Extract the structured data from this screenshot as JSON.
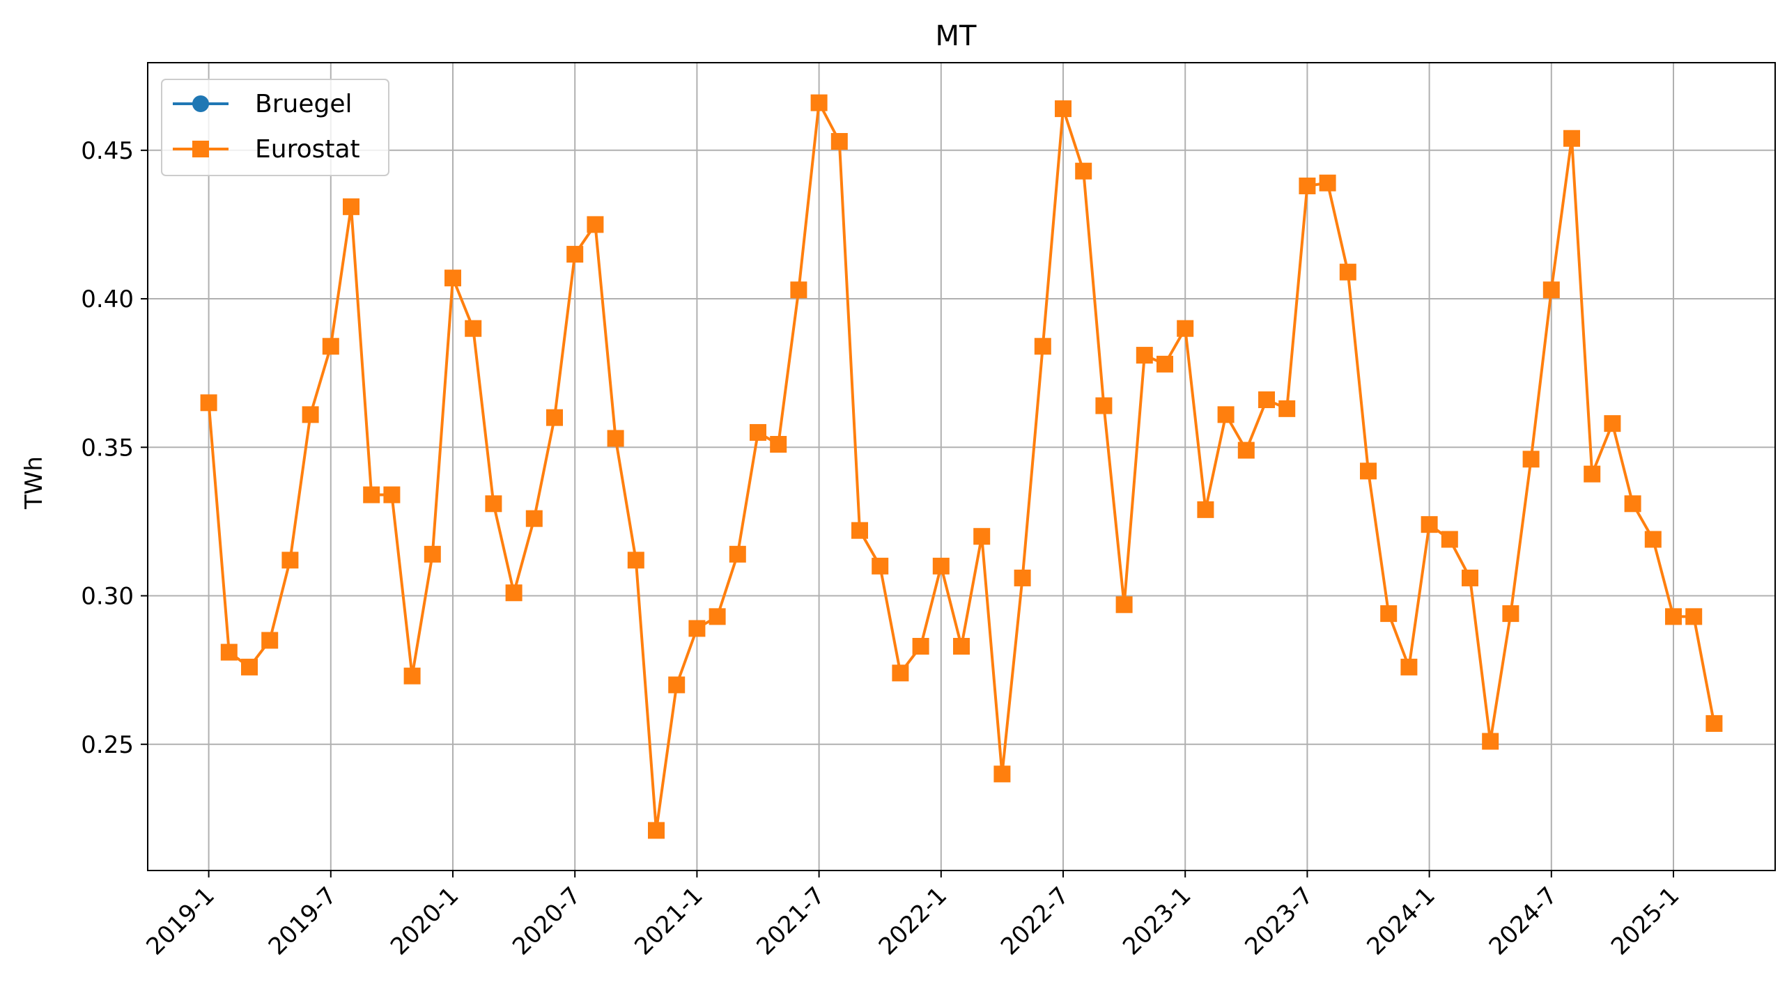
{
  "chart_data": {
    "type": "line",
    "title": "MT",
    "xlabel": "",
    "ylabel": "TWh",
    "x_tick_labels": [
      "2019-1",
      "2019-7",
      "2020-1",
      "2020-7",
      "2021-1",
      "2021-7",
      "2022-1",
      "2022-7",
      "2023-1",
      "2023-7",
      "2024-1",
      "2024-7",
      "2025-1"
    ],
    "y_tick_labels": [
      "0.25",
      "0.30",
      "0.35",
      "0.40",
      "0.45"
    ],
    "y_ticks": [
      0.25,
      0.3,
      0.35,
      0.4,
      0.45
    ],
    "ylim": [
      0.2075,
      0.4795
    ],
    "x_range": [
      "2018-10",
      "2025-6"
    ],
    "grid": true,
    "legend_position": "upper-left",
    "series": [
      {
        "name": "Bruegel",
        "color": "#1f77b4",
        "marker": "circle",
        "values": []
      },
      {
        "name": "Eurostat",
        "color": "#ff7f0e",
        "marker": "square",
        "x": [
          "2019-1",
          "2019-2",
          "2019-3",
          "2019-4",
          "2019-5",
          "2019-6",
          "2019-7",
          "2019-8",
          "2019-9",
          "2019-10",
          "2019-11",
          "2019-12",
          "2020-1",
          "2020-2",
          "2020-3",
          "2020-4",
          "2020-5",
          "2020-6",
          "2020-7",
          "2020-8",
          "2020-9",
          "2020-10",
          "2020-11",
          "2020-12",
          "2021-1",
          "2021-2",
          "2021-3",
          "2021-4",
          "2021-5",
          "2021-6",
          "2021-7",
          "2021-8",
          "2021-9",
          "2021-10",
          "2021-11",
          "2021-12",
          "2022-1",
          "2022-2",
          "2022-3",
          "2022-4",
          "2022-5",
          "2022-6",
          "2022-7",
          "2022-8",
          "2022-9",
          "2022-10",
          "2022-11",
          "2022-12",
          "2023-1",
          "2023-2",
          "2023-3",
          "2023-4",
          "2023-5",
          "2023-6",
          "2023-7",
          "2023-8",
          "2023-9",
          "2023-10",
          "2023-11",
          "2023-12",
          "2024-1",
          "2024-2",
          "2024-3",
          "2024-4",
          "2024-5",
          "2024-6",
          "2024-7",
          "2024-8",
          "2024-9",
          "2024-10",
          "2024-11",
          "2024-12",
          "2025-1",
          "2025-2",
          "2025-3"
        ],
        "values": [
          0.365,
          0.281,
          0.276,
          0.285,
          0.312,
          0.361,
          0.384,
          0.431,
          0.334,
          0.334,
          0.273,
          0.314,
          0.407,
          0.39,
          0.331,
          0.301,
          0.326,
          0.36,
          0.415,
          0.425,
          0.353,
          0.312,
          0.221,
          0.27,
          0.289,
          0.293,
          0.314,
          0.355,
          0.351,
          0.403,
          0.466,
          0.453,
          0.322,
          0.31,
          0.274,
          0.283,
          0.31,
          0.283,
          0.32,
          0.24,
          0.306,
          0.384,
          0.464,
          0.443,
          0.364,
          0.297,
          0.381,
          0.378,
          0.39,
          0.329,
          0.361,
          0.349,
          0.366,
          0.363,
          0.438,
          0.439,
          0.409,
          0.342,
          0.294,
          0.276,
          0.324,
          0.319,
          0.306,
          0.251,
          0.294,
          0.346,
          0.403,
          0.454,
          0.341,
          0.358,
          0.331,
          0.319,
          0.293,
          0.293,
          0.257
        ]
      }
    ]
  }
}
